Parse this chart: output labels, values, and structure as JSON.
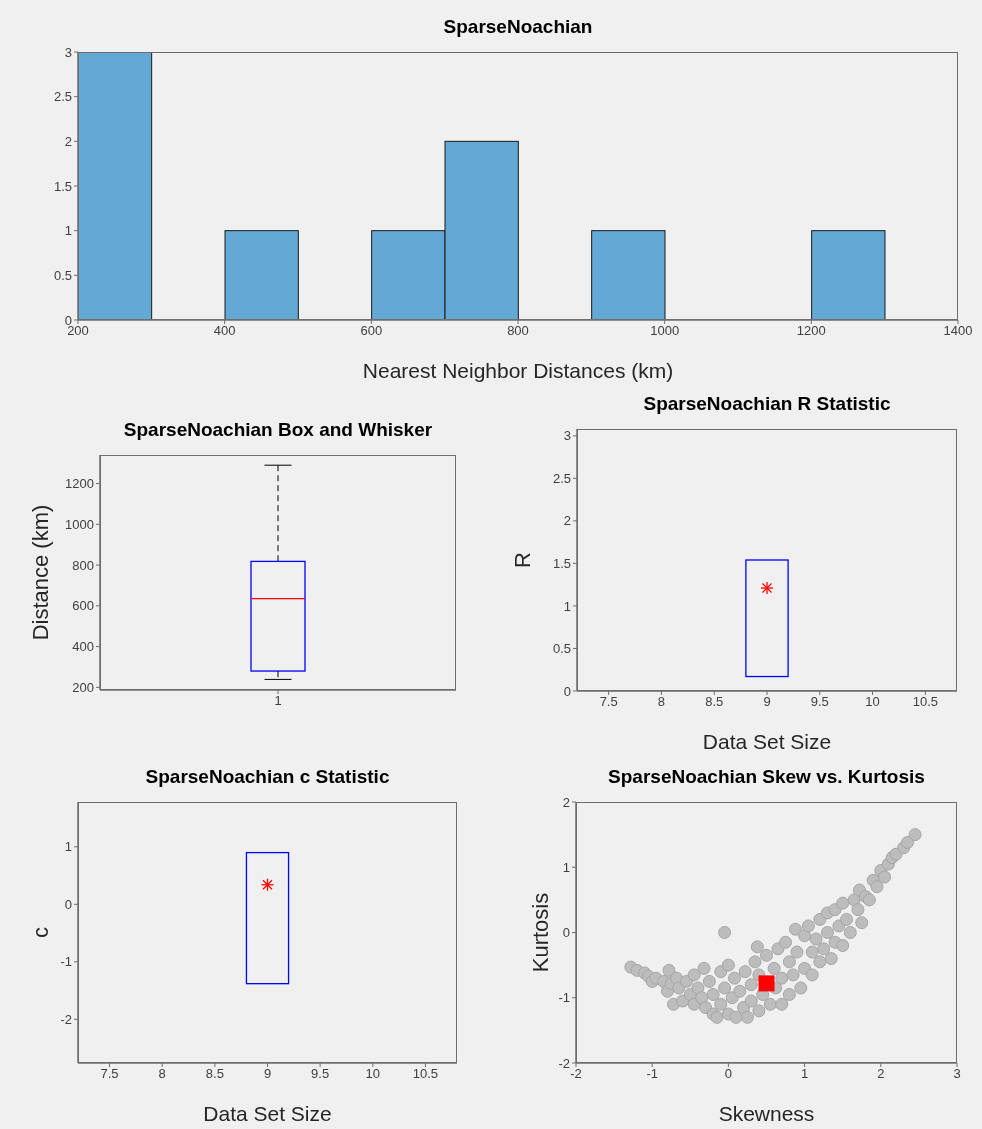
{
  "chart_data": [
    {
      "type": "histogram",
      "title": "SparseNoachian",
      "xlabel": "Nearest Neighbor Distances (km)",
      "bins": [
        200,
        300,
        400,
        500,
        600,
        700,
        800,
        900,
        1000,
        1100,
        1200,
        1300
      ],
      "values": [
        3,
        0,
        1,
        0,
        1,
        2,
        0,
        1,
        0,
        0,
        1
      ],
      "color": "#64a8d6",
      "xlim": [
        200,
        1400
      ],
      "xticks": [
        200,
        400,
        600,
        800,
        1000,
        1200,
        1400
      ],
      "ylim": [
        0,
        3
      ],
      "yticks": [
        0,
        0.5,
        1,
        1.5,
        2,
        2.5,
        3
      ]
    },
    {
      "type": "box",
      "title": "SparseNoachian Box and Whisker",
      "ylabel": "Distance (km)",
      "categories": [
        "1"
      ],
      "color": "#0000ff",
      "boxes": [
        {
          "low": 239,
          "q1": 280,
          "median": 635,
          "q3": 818,
          "high": 1290
        }
      ],
      "ylim": [
        187,
        1340
      ],
      "yticks": [
        200,
        400,
        600,
        800,
        1000,
        1200
      ]
    },
    {
      "type": "bar",
      "title": "SparseNoachian R Statistic",
      "xlabel": "Data Set Size",
      "ylabel": "R",
      "xlim": [
        7.2,
        10.8
      ],
      "xticks": [
        7.5,
        8,
        8.5,
        9,
        9.5,
        10,
        10.5
      ],
      "ylim": [
        0,
        3.08
      ],
      "yticks": [
        0,
        0.5,
        1,
        1.5,
        2,
        2.5,
        3
      ],
      "series": [
        {
          "type": "bar",
          "x": [
            9
          ],
          "base": [
            0.17
          ],
          "values": [
            1.37
          ],
          "color": "#0000ff"
        },
        {
          "type": "scatter",
          "x": [
            9
          ],
          "values": [
            1.21
          ],
          "color": "#ff0000",
          "marker": "cross"
        }
      ]
    },
    {
      "type": "bar",
      "title": "SparseNoachian c Statistic",
      "xlabel": "Data Set Size",
      "ylabel": "c",
      "xlim": [
        7.2,
        10.8
      ],
      "xticks": [
        7.5,
        8,
        8.5,
        9,
        9.5,
        10,
        10.5
      ],
      "ylim": [
        -2.76,
        1.78
      ],
      "yticks": [
        -2,
        -1,
        0,
        1
      ],
      "series": [
        {
          "type": "bar",
          "x": [
            9
          ],
          "base": [
            -1.38
          ],
          "values": [
            2.28
          ],
          "color": "#0000ff"
        },
        {
          "type": "scatter",
          "x": [
            9
          ],
          "values": [
            0.34
          ],
          "color": "#ff0000",
          "marker": "cross"
        }
      ]
    },
    {
      "type": "scatter",
      "title": "SparseNoachian Skew vs. Kurtosis",
      "xlabel": "Skewness",
      "ylabel": "Kurtosis",
      "xlim": [
        -2,
        3
      ],
      "xticks": [
        -2,
        -1,
        0,
        1,
        2,
        3
      ],
      "ylim": [
        -2,
        2
      ],
      "yticks": [
        -2,
        -1,
        0,
        1,
        2
      ],
      "series": [
        {
          "type": "scatter",
          "color": "#bdbdbd",
          "marker": "circle",
          "x": [
            -1.28,
            -1.2,
            -1.1,
            -1.05,
            -1.0,
            -0.95,
            -0.85,
            -0.8,
            -0.78,
            -0.75,
            -0.72,
            -0.68,
            -0.65,
            -0.6,
            -0.55,
            -0.5,
            -0.45,
            -0.45,
            -0.4,
            -0.35,
            -0.32,
            -0.3,
            -0.25,
            -0.2,
            -0.2,
            -0.15,
            -0.1,
            -0.1,
            -0.05,
            -0.05,
            0,
            0,
            0.05,
            0.08,
            0.1,
            0.15,
            0.2,
            0.22,
            0.25,
            0.3,
            0.3,
            0.35,
            0.38,
            0.4,
            0.4,
            0.45,
            0.5,
            0.55,
            0.6,
            0.62,
            0.65,
            0.7,
            0.7,
            0.75,
            0.8,
            0.8,
            0.85,
            0.88,
            0.9,
            0.95,
            1.0,
            1.0,
            1.05,
            1.1,
            1.1,
            1.15,
            1.2,
            1.2,
            1.25,
            1.3,
            1.3,
            1.35,
            1.4,
            1.4,
            1.45,
            1.5,
            1.5,
            1.55,
            1.6,
            1.65,
            1.7,
            1.72,
            1.75,
            1.8,
            1.85,
            1.9,
            1.95,
            2.0,
            2.05,
            2.1,
            2.15,
            2.2,
            2.3,
            2.35,
            2.45
          ],
          "values": [
            -0.53,
            -0.58,
            -0.62,
            -0.67,
            -0.75,
            -0.7,
            -0.75,
            -0.9,
            -0.58,
            -0.78,
            -1.1,
            -0.7,
            -0.85,
            -1.05,
            -0.75,
            -0.95,
            -0.65,
            -1.1,
            -0.85,
            -1.0,
            -0.55,
            -1.15,
            -0.75,
            -0.95,
            -1.25,
            -1.3,
            -0.6,
            -1.1,
            -0.85,
            0.0,
            -0.5,
            -1.25,
            -1.0,
            -0.7,
            -1.3,
            -0.9,
            -1.15,
            -0.6,
            -1.3,
            -0.8,
            -1.05,
            -0.45,
            -0.22,
            -1.2,
            -0.65,
            -0.95,
            -0.35,
            -1.1,
            -0.55,
            -0.85,
            -0.25,
            -1.1,
            -0.7,
            -0.15,
            -0.45,
            -0.95,
            -0.65,
            0.05,
            -0.3,
            -0.85,
            -0.05,
            -0.55,
            0.1,
            -0.3,
            -0.65,
            -0.1,
            0.2,
            -0.45,
            -0.25,
            0.3,
            0.0,
            -0.4,
            -0.15,
            0.35,
            0.1,
            -0.2,
            0.45,
            0.2,
            0.0,
            0.5,
            0.35,
            0.65,
            0.15,
            0.55,
            0.5,
            0.8,
            0.7,
            0.95,
            0.85,
            1.05,
            1.15,
            1.2,
            1.3,
            1.38,
            1.5
          ]
        },
        {
          "type": "scatter",
          "color": "#ff0000",
          "marker": "square",
          "x": [
            0.5
          ],
          "values": [
            -0.78
          ]
        }
      ]
    }
  ]
}
